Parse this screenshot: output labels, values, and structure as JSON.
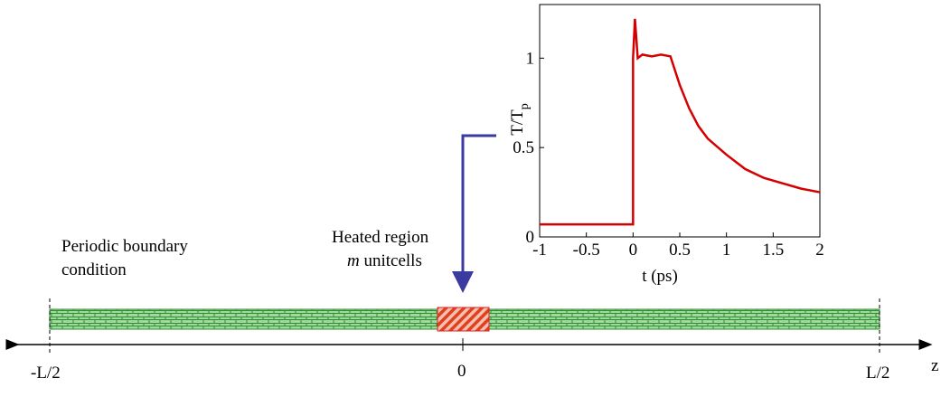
{
  "diagram": {
    "left_label": [
      "Periodic boundary",
      "condition"
    ],
    "heated_label": "Heated region",
    "heated_count": "m",
    "heated_unit": " unitcells",
    "axis_labels": [
      "-L/2",
      "0",
      "L/2"
    ],
    "axis_name": "z"
  },
  "chart_data": {
    "type": "line",
    "xlabel": "t (ps)",
    "ylabel": "T/T",
    "ylabel_sub": "p",
    "x": [
      -1,
      -0.5,
      0,
      0,
      0.02,
      0.05,
      0.1,
      0.2,
      0.3,
      0.4,
      0.5,
      0.6,
      0.7,
      0.8,
      1,
      1.2,
      1.4,
      1.6,
      1.8,
      2
    ],
    "series": [
      {
        "color": "#d40000",
        "values": [
          0.07,
          0.07,
          0.07,
          1.0,
          1.22,
          1.0,
          1.02,
          1.01,
          1.02,
          1.01,
          0.85,
          0.72,
          0.62,
          0.55,
          0.46,
          0.38,
          0.33,
          0.3,
          0.27,
          0.25
        ]
      }
    ],
    "xlim": [
      -1,
      2
    ],
    "ylim": [
      0,
      1.3
    ],
    "xticks": [
      -1,
      -0.5,
      0,
      0.5,
      1,
      1.5,
      2
    ],
    "yticks": [
      0,
      0.5,
      1
    ],
    "grid": false
  }
}
